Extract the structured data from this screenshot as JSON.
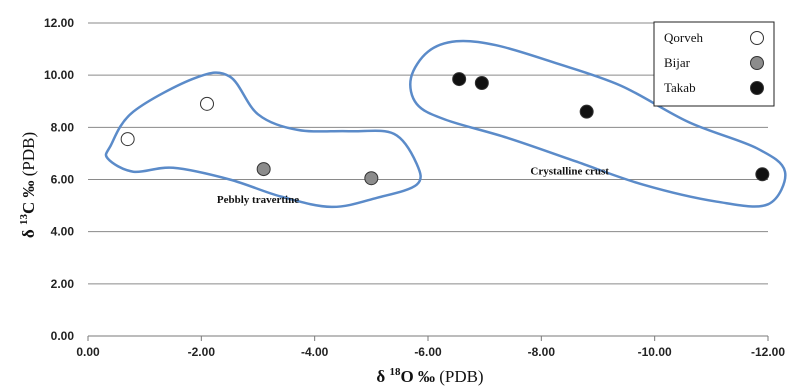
{
  "chart_data": {
    "type": "scatter",
    "xlabel_prefix": "δ ",
    "xlabel_sup": "18",
    "xlabel_main": "O ‰",
    "xlabel_unit": " (PDB)",
    "ylabel_prefix": "δ ",
    "ylabel_sup": "13",
    "ylabel_main": "C ‰",
    "ylabel_unit": " (PDB)",
    "xlim": [
      0,
      -12
    ],
    "ylim": [
      0,
      12
    ],
    "x_ticks": [
      "0.00",
      "-2.00",
      "-4.00",
      "-6.00",
      "-8.00",
      "-10.00",
      "-12.00"
    ],
    "y_ticks": [
      "0.00",
      "2.00",
      "4.00",
      "6.00",
      "8.00",
      "10.00",
      "12.00"
    ],
    "grid": "horizontal",
    "legend_position": "top-right",
    "series": [
      {
        "name": "Qorveh",
        "color": "#ffffff",
        "points": [
          [
            -0.7,
            7.55
          ],
          [
            -2.1,
            8.9
          ]
        ]
      },
      {
        "name": "Bijar",
        "color": "#8c8c8c",
        "points": [
          [
            -3.1,
            6.4
          ],
          [
            -5.0,
            6.05
          ]
        ]
      },
      {
        "name": "Takab",
        "color": "#111111",
        "points": [
          [
            -6.55,
            9.85
          ],
          [
            -6.95,
            9.7
          ],
          [
            -8.8,
            8.6
          ],
          [
            -11.9,
            6.2
          ]
        ]
      }
    ],
    "annotations": [
      {
        "text": "Pebbly travertine",
        "x": -3.0,
        "y": 5.1
      },
      {
        "text": "Crystalline crust",
        "x": -8.5,
        "y": 6.2
      }
    ],
    "outline_color": "#5b8bc9"
  }
}
